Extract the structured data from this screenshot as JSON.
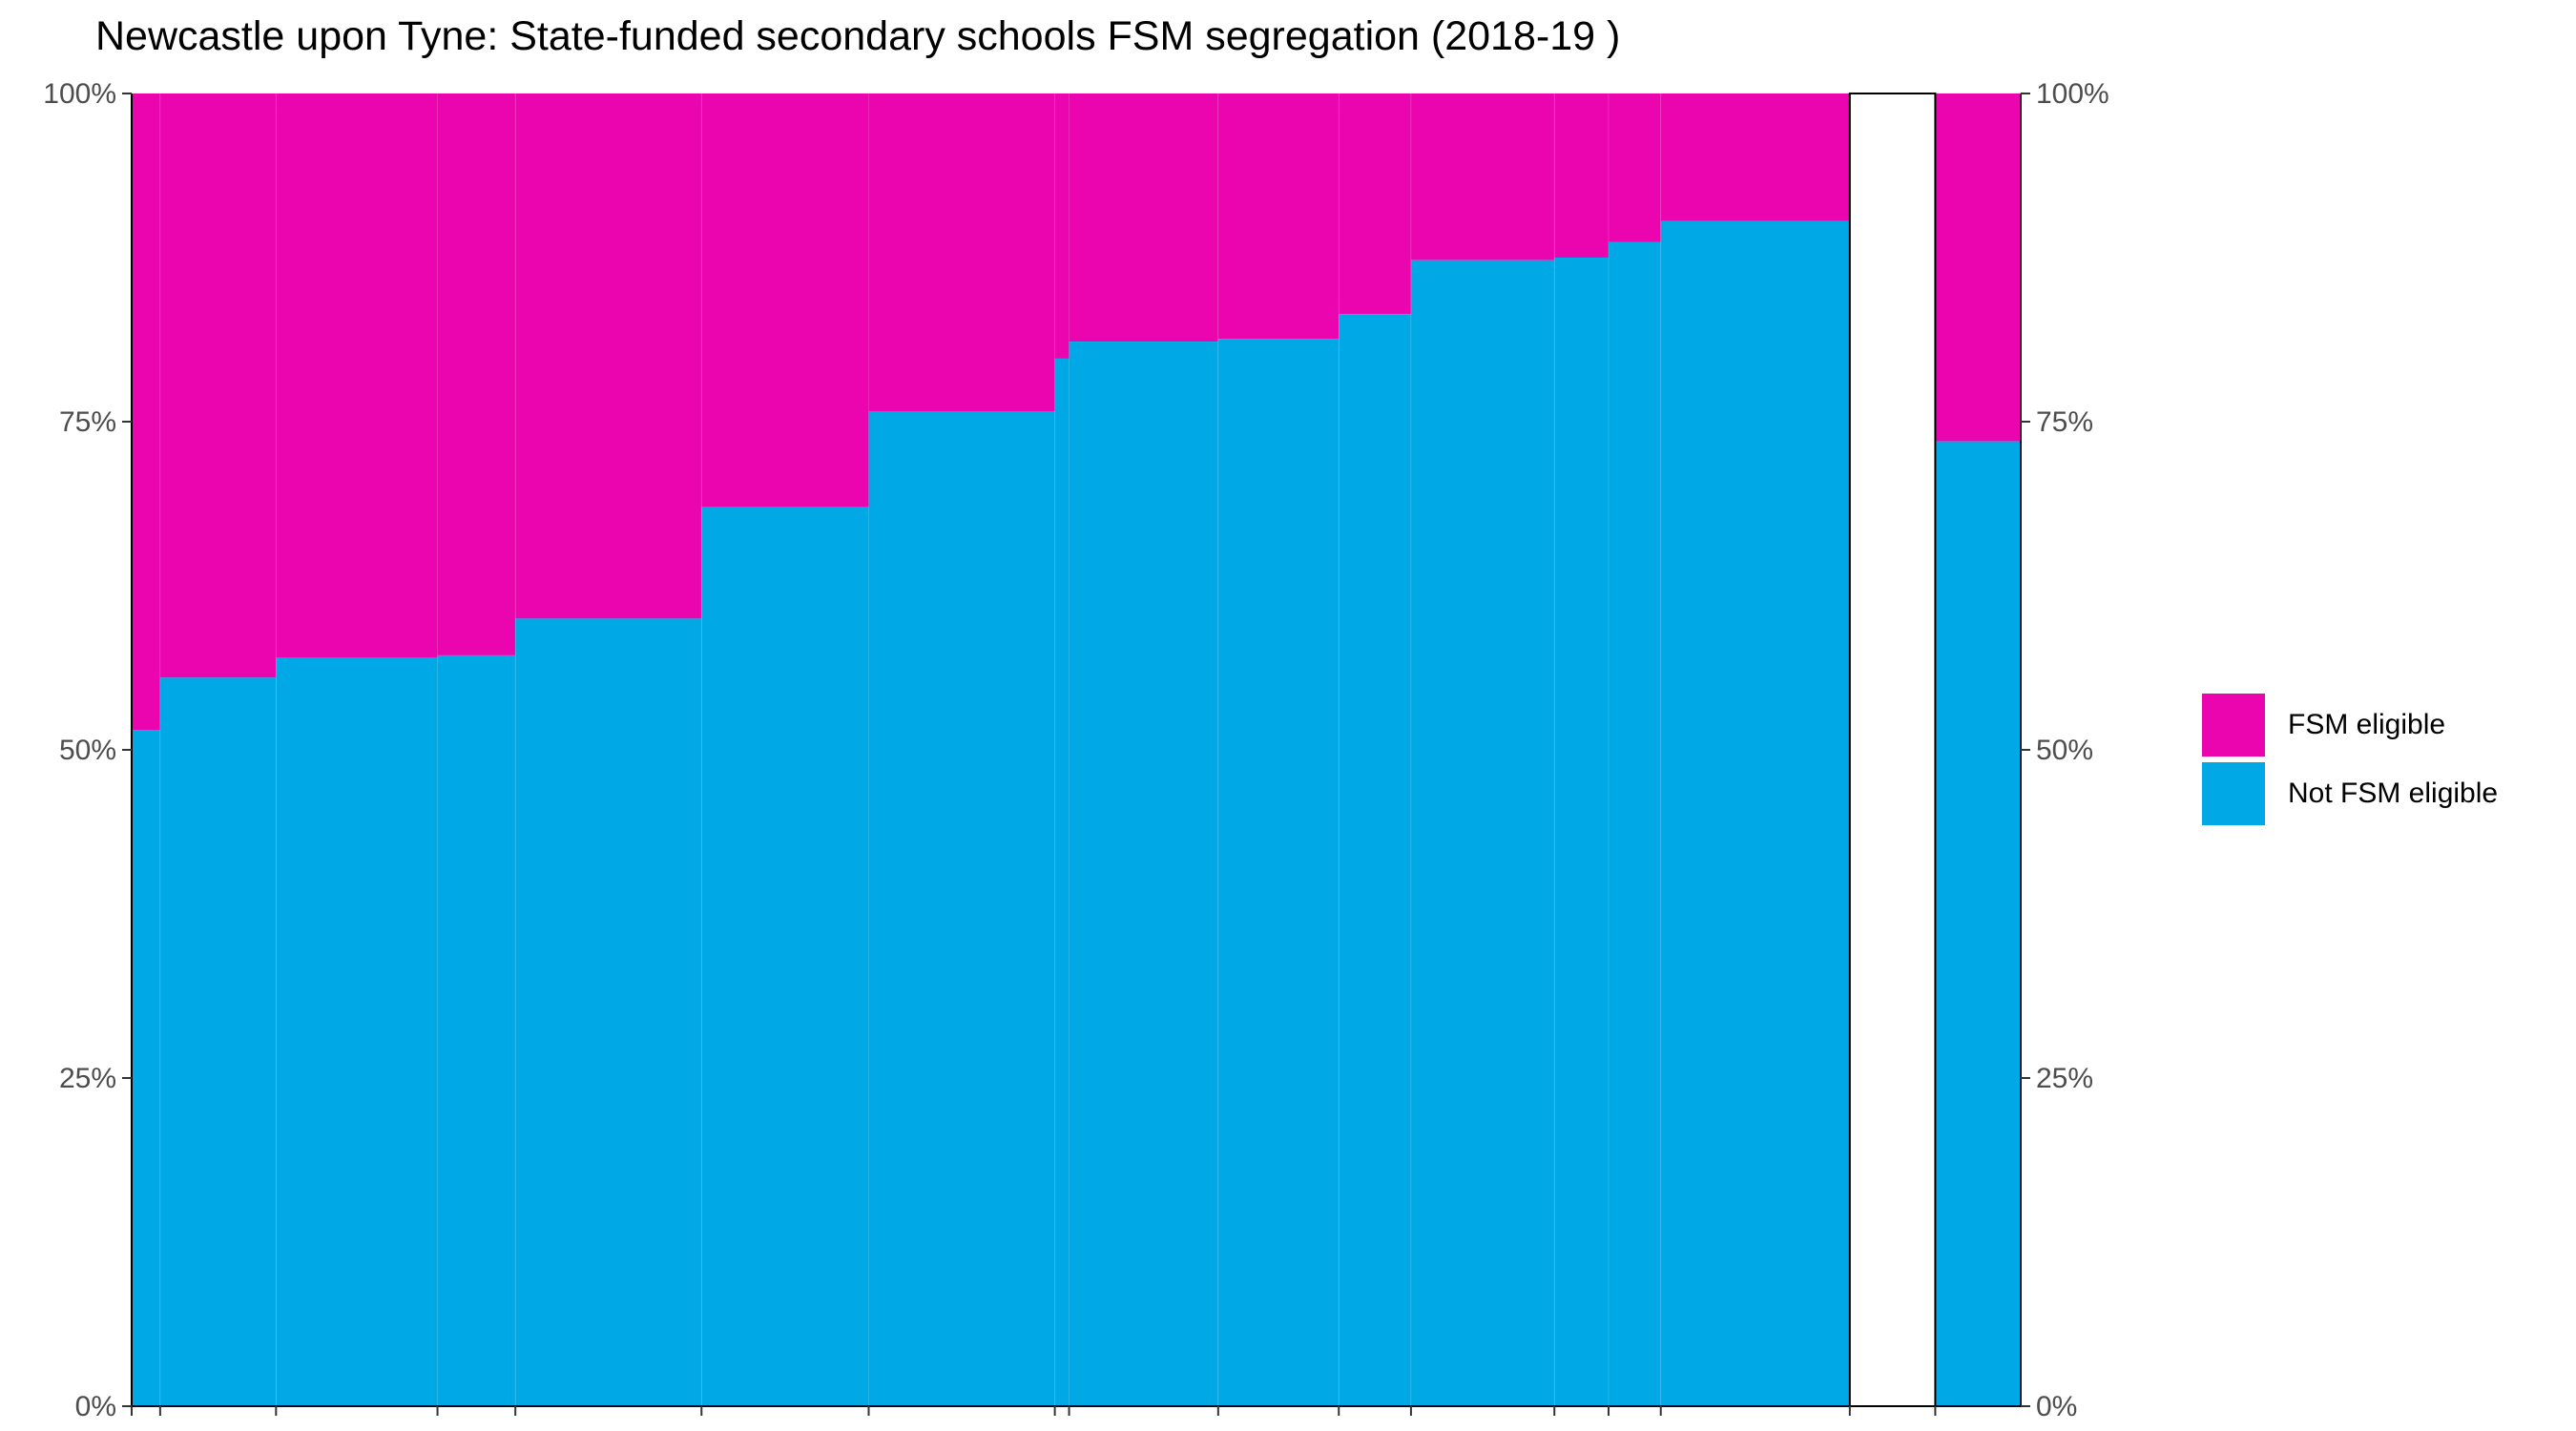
{
  "chart_data": {
    "type": "bar",
    "title": "Newcastle upon Tyne: State-funded secondary schools FSM segregation (2018-19 )",
    "xlabel": "",
    "ylabel": "",
    "ylim": [
      0,
      100
    ],
    "y_ticks": [
      "0%",
      "25%",
      "50%",
      "75%",
      "100%"
    ],
    "y_tick_values": [
      0,
      25,
      50,
      75,
      100
    ],
    "layout_note_free": true,
    "series": [
      {
        "name": "Not FSM eligible",
        "color": "#00A9E6"
      },
      {
        "name": "FSM eligible",
        "color": "#EA05AF"
      }
    ],
    "schools": [
      {
        "pupils": 150,
        "not_fsm_pct": 51.5
      },
      {
        "pupils": 610,
        "not_fsm_pct": 55.5
      },
      {
        "pupils": 850,
        "not_fsm_pct": 57.0
      },
      {
        "pupils": 410,
        "not_fsm_pct": 57.2
      },
      {
        "pupils": 980,
        "not_fsm_pct": 60.0
      },
      {
        "pupils": 880,
        "not_fsm_pct": 68.5
      },
      {
        "pupils": 980,
        "not_fsm_pct": 75.8
      },
      {
        "pupils": 75,
        "not_fsm_pct": 79.8
      },
      {
        "pupils": 785,
        "not_fsm_pct": 81.1
      },
      {
        "pupils": 635,
        "not_fsm_pct": 81.3
      },
      {
        "pupils": 380,
        "not_fsm_pct": 83.2
      },
      {
        "pupils": 755,
        "not_fsm_pct": 87.3
      },
      {
        "pupils": 285,
        "not_fsm_pct": 87.5
      },
      {
        "pupils": 275,
        "not_fsm_pct": 88.7
      },
      {
        "pupils": 995,
        "not_fsm_pct": 90.3
      }
    ],
    "gap_pupils": 450,
    "overall": {
      "pupils": 450,
      "not_fsm_pct": 73.5
    },
    "legend_position": "right",
    "grid": false
  },
  "legend": {
    "items": [
      {
        "label": "FSM eligible",
        "color": "#EA05AF"
      },
      {
        "label": "Not FSM eligible",
        "color": "#00A9E6"
      }
    ]
  }
}
